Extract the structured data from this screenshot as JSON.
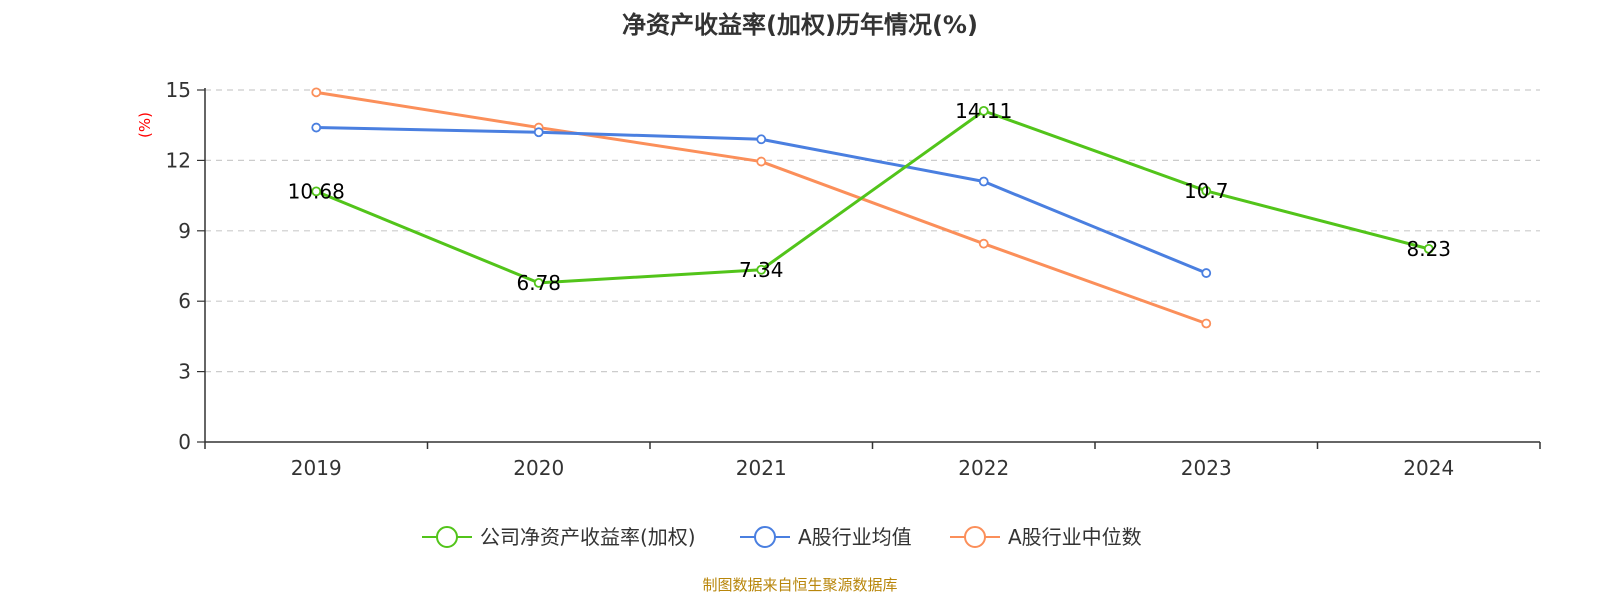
{
  "chart_data": {
    "type": "line",
    "title": "净资产收益率(加权)历年情况(%)",
    "ylabel": "(%)",
    "xlabel": "",
    "categories": [
      "2019",
      "2020",
      "2021",
      "2022",
      "2023",
      "2024"
    ],
    "yticks": [
      "0",
      "3",
      "6",
      "9",
      "12",
      "15"
    ],
    "ylim": [
      0,
      15
    ],
    "grid": true,
    "legend_position": "bottom",
    "series": [
      {
        "name": "公司净资产收益率(加权)",
        "color": "#52c41a",
        "values": [
          10.68,
          6.78,
          7.34,
          14.11,
          10.7,
          8.23
        ],
        "labels": [
          "10.68",
          "6.78",
          "7.34",
          "14.11",
          "10.7",
          "8.23"
        ]
      },
      {
        "name": "A股行业均值",
        "color": "#4a7fe0",
        "values": [
          13.4,
          13.2,
          12.9,
          11.1,
          7.2,
          null
        ],
        "labels": []
      },
      {
        "name": "A股行业中位数",
        "color": "#fb8f5a",
        "values": [
          14.9,
          13.4,
          11.95,
          8.45,
          5.05,
          null
        ],
        "labels": []
      }
    ]
  },
  "source": "制图数据来自恒生聚源数据库"
}
